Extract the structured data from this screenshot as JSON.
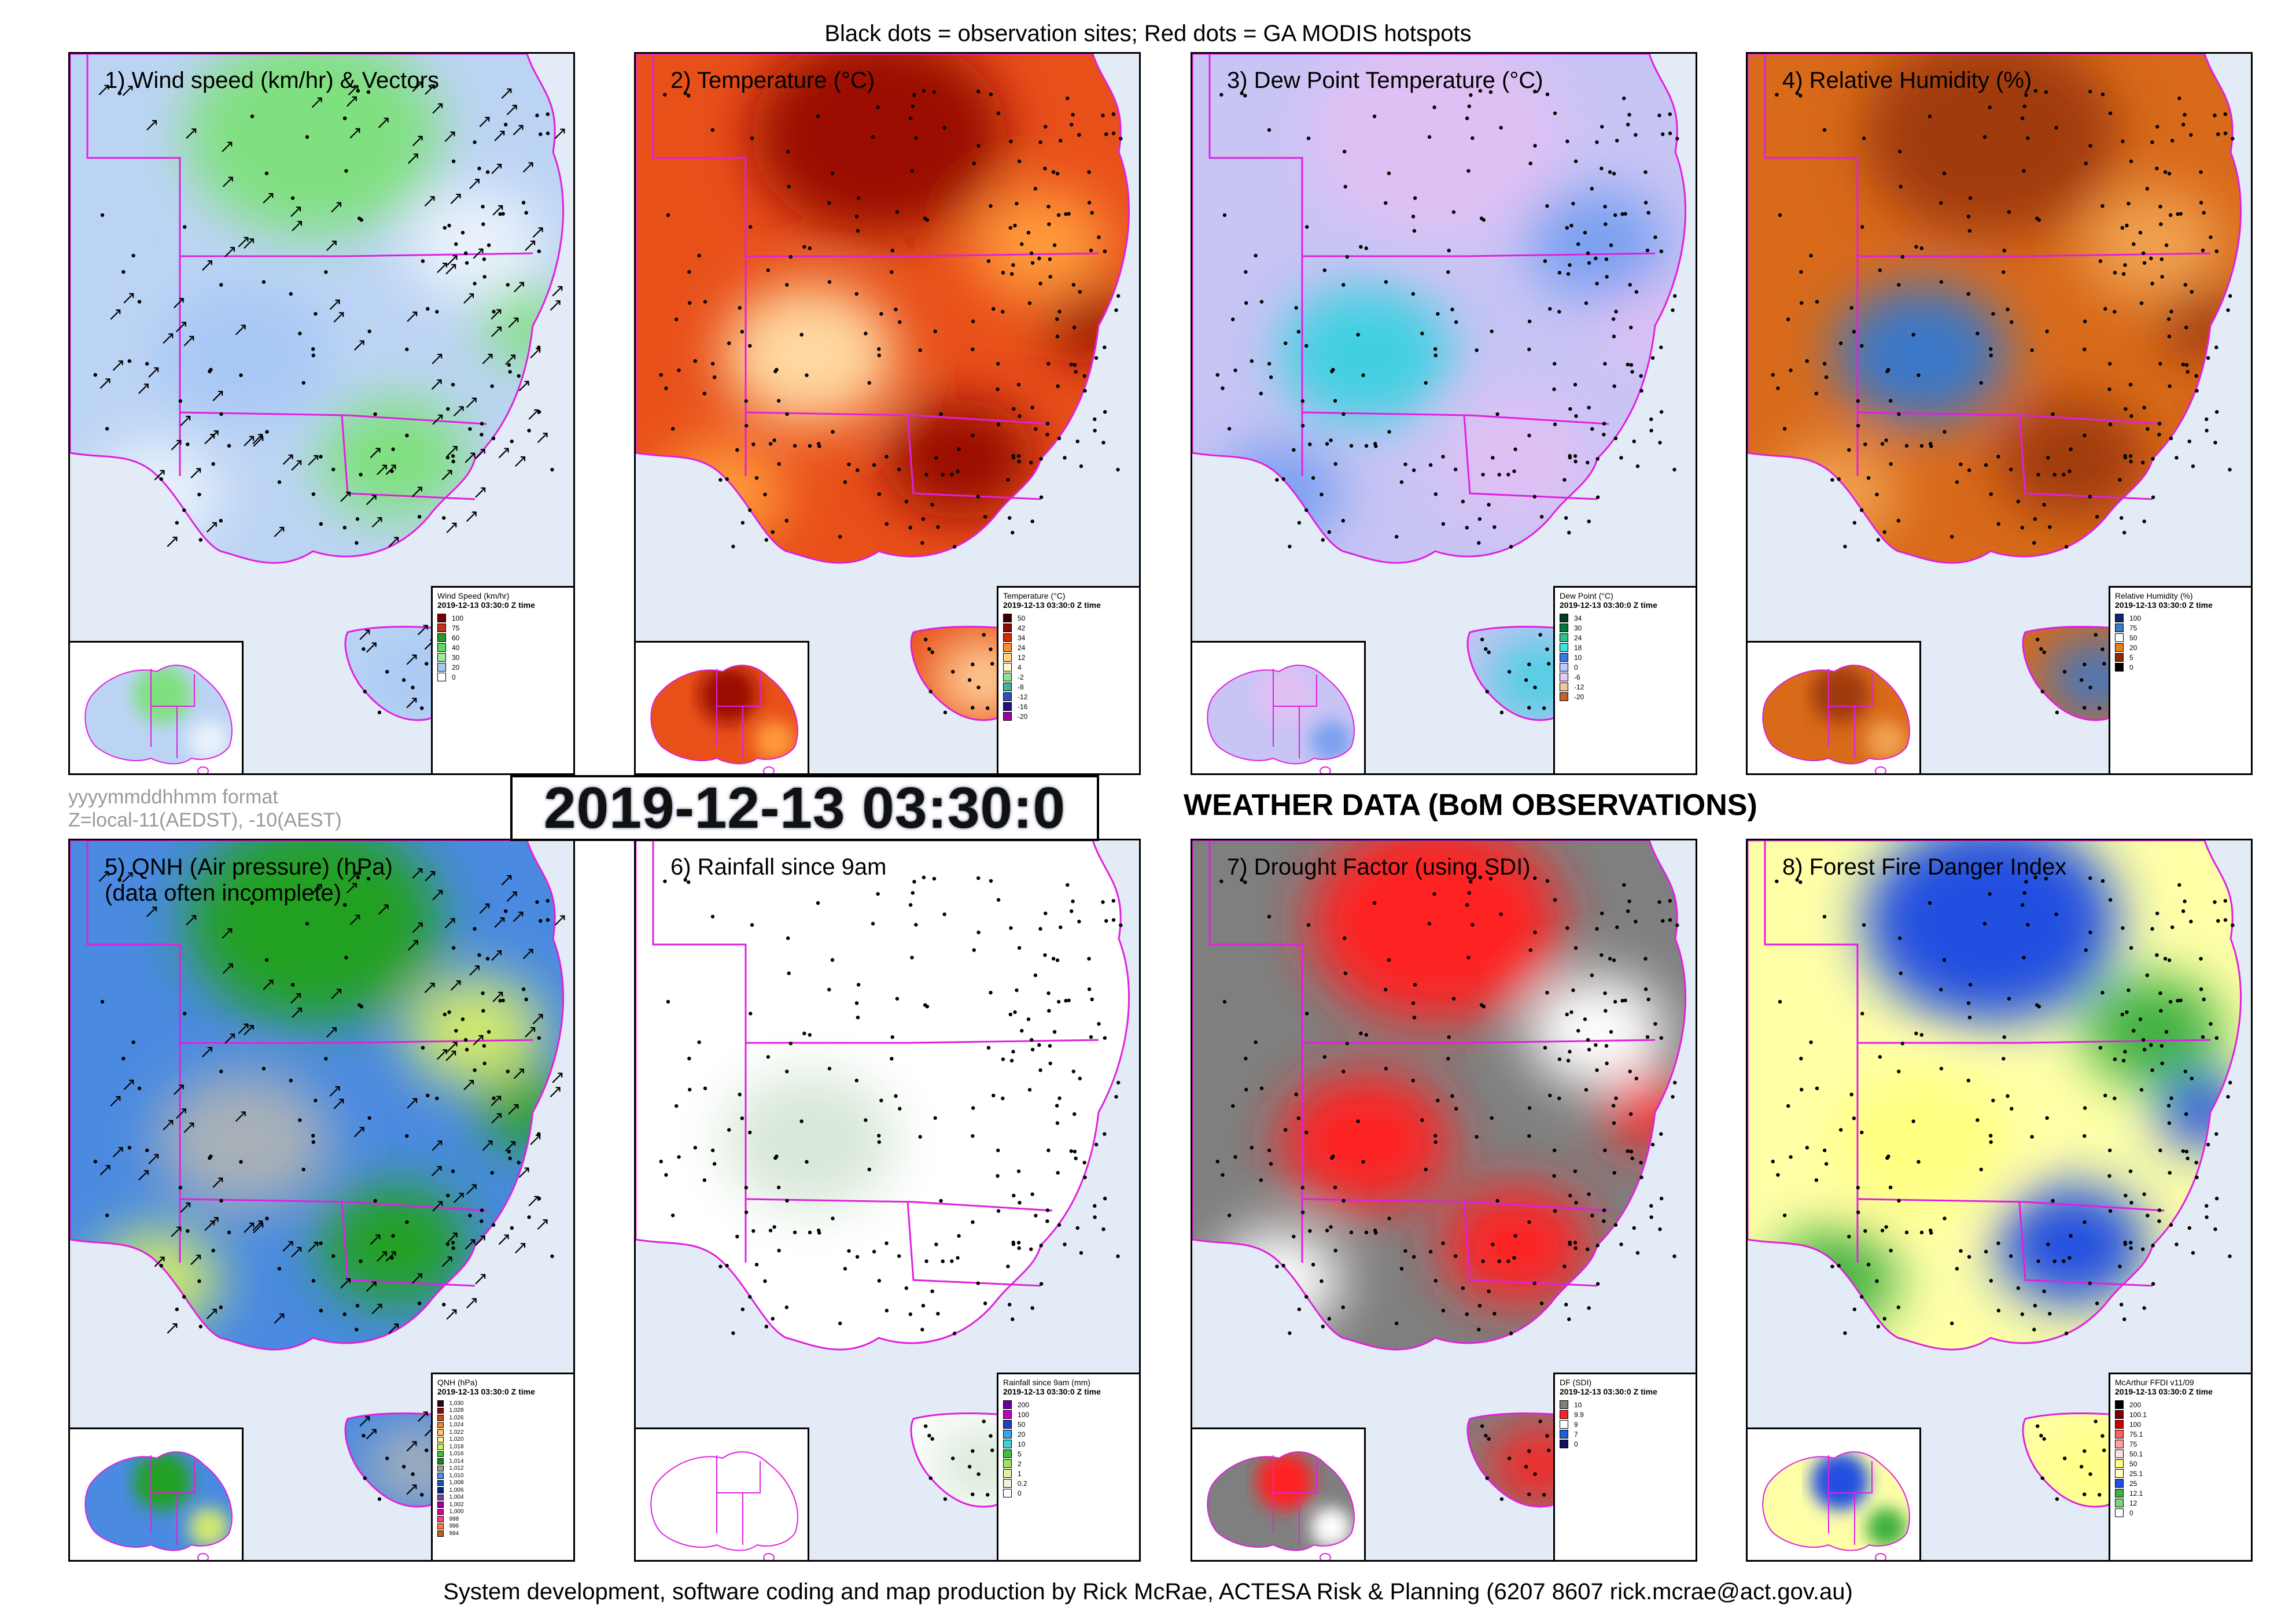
{
  "header": {
    "caption": "Black dots = observation sites; Red dots = GA MODIS hotspots"
  },
  "footer": {
    "caption": "System development, software coding and map production by Rick McRae, ACTESA Risk & Planning (6207 8607 rick.mcrae@act.gov.au)"
  },
  "timestamp": {
    "value": "2019-12-13 03:30:0",
    "format_note": "yyyymmddhhmm format",
    "zone_note": "Z=local-11(AEDST), -10(AEST)"
  },
  "main_title": "WEATHER DATA (BoM OBSERVATIONS)",
  "colors": {
    "border_magenta": "#e020e0",
    "ocean": "#e3ecf6",
    "site_dot": "#000000",
    "hotspot": "#ff2020"
  },
  "panels": [
    {
      "id": "wind",
      "title": "1) Wind speed (km/hr) & Vectors",
      "legend_title": "Wind Speed (km/hr)",
      "legend_date": "2019-12-13 03:30:0 Z time",
      "legend_items": [
        {
          "label": "100",
          "color": "#7a0000"
        },
        {
          "label": "75",
          "color": "#c0301a"
        },
        {
          "label": "60",
          "color": "#2a9a2a"
        },
        {
          "label": "40",
          "color": "#5fd65f"
        },
        {
          "label": "30",
          "color": "#9fe89f"
        },
        {
          "label": "20",
          "color": "#a8c8f4"
        },
        {
          "label": "0",
          "color": "#ffffff"
        }
      ],
      "base": "#bcd4f4",
      "blobs": [
        "#7fe07f",
        "#eaf2fc",
        "#a8c8f4"
      ],
      "arrows": true
    },
    {
      "id": "temp",
      "title": "2) Temperature (°C)",
      "legend_title": "Temperature (°C)",
      "legend_date": "2019-12-13 03:30:0 Z time",
      "legend_items": [
        {
          "label": "50",
          "color": "#3a0000"
        },
        {
          "label": "42",
          "color": "#8a0a00"
        },
        {
          "label": "34",
          "color": "#d42a00"
        },
        {
          "label": "24",
          "color": "#ff8c2a"
        },
        {
          "label": "12",
          "color": "#ffd27a"
        },
        {
          "label": "4",
          "color": "#fff6c8"
        },
        {
          "label": "-2",
          "color": "#8fe08f"
        },
        {
          "label": "-8",
          "color": "#40b0a0"
        },
        {
          "label": "-12",
          "color": "#3050c0"
        },
        {
          "label": "-16",
          "color": "#201080"
        },
        {
          "label": "-20",
          "color": "#a000a0"
        }
      ],
      "base": "#e8501a",
      "blobs": [
        "#9a1000",
        "#ff9a3a",
        "#ffd8a0"
      ],
      "arrows": false
    },
    {
      "id": "dew",
      "title": "3) Dew Point Temperature (°C)",
      "legend_title": "Dew Point (°C)",
      "legend_date": "2019-12-13 03:30:0 Z time",
      "legend_items": [
        {
          "label": "34",
          "color": "#004020"
        },
        {
          "label": "30",
          "color": "#007a40"
        },
        {
          "label": "24",
          "color": "#30c08a"
        },
        {
          "label": "18",
          "color": "#40e0e0"
        },
        {
          "label": "10",
          "color": "#3a7ae0"
        },
        {
          "label": "0",
          "color": "#b8c8ff"
        },
        {
          "label": "-6",
          "color": "#e8c8f4"
        },
        {
          "label": "-12",
          "color": "#f0c8a0"
        },
        {
          "label": "-20",
          "color": "#c86030"
        }
      ],
      "base": "#c8c4f4",
      "blobs": [
        "#e0c0f4",
        "#7aa0f0",
        "#40d0e0"
      ],
      "arrows": false
    },
    {
      "id": "rh",
      "title": "4) Relative Humidity (%)",
      "legend_title": "Relative Humidity (%)",
      "legend_date": "2019-12-13 03:30:0 Z time",
      "legend_items": [
        {
          "label": "100",
          "color": "#0a2a6a"
        },
        {
          "label": "75",
          "color": "#3a78c8"
        },
        {
          "label": "50",
          "color": "#ffffff"
        },
        {
          "label": "20",
          "color": "#e8801a"
        },
        {
          "label": "5",
          "color": "#8a2a00"
        },
        {
          "label": "0",
          "color": "#000000"
        }
      ],
      "base": "#d86a1a",
      "blobs": [
        "#a03a08",
        "#f0a050",
        "#3a78c8"
      ],
      "arrows": false
    },
    {
      "id": "qnh",
      "title": "5) QNH (Air pressure) (hPa)\n(data often incomplete)",
      "legend_title": "QNH (hPa)",
      "legend_date": "2019-12-13 03:30:0 Z time",
      "legend_items": [
        {
          "label": "1,030",
          "color": "#3a0000"
        },
        {
          "label": "1,028",
          "color": "#8a0a0a"
        },
        {
          "label": "1,026",
          "color": "#d04a10"
        },
        {
          "label": "1,024",
          "color": "#f08a30"
        },
        {
          "label": "1,022",
          "color": "#ffc860"
        },
        {
          "label": "1,020",
          "color": "#fff080"
        },
        {
          "label": "1,018",
          "color": "#c8f060"
        },
        {
          "label": "1,016",
          "color": "#40c040"
        },
        {
          "label": "1,014",
          "color": "#108a10"
        },
        {
          "label": "1,012",
          "color": "#a0a0a0"
        },
        {
          "label": "1,010",
          "color": "#4a90e8"
        },
        {
          "label": "1,008",
          "color": "#2050c0"
        },
        {
          "label": "1,006",
          "color": "#102080"
        },
        {
          "label": "1,004",
          "color": "#6a4aa0"
        },
        {
          "label": "1,002",
          "color": "#a000a0"
        },
        {
          "label": "1,000",
          "color": "#e000a0"
        },
        {
          "label": "998",
          "color": "#ff4080"
        },
        {
          "label": "996",
          "color": "#ff8040"
        },
        {
          "label": "994",
          "color": "#c06020"
        }
      ],
      "base": "#4a8ae0",
      "blobs": [
        "#20a020",
        "#d0e870",
        "#a8b0b8"
      ],
      "arrows": true
    },
    {
      "id": "rain",
      "title": "6) Rainfall since 9am",
      "legend_title": "Rainfall since 9am (mm)",
      "legend_date": "2019-12-13 03:30:0 Z time",
      "legend_items": [
        {
          "label": "200",
          "color": "#6a00a0"
        },
        {
          "label": "100",
          "color": "#c000c0"
        },
        {
          "label": "50",
          "color": "#2040c0"
        },
        {
          "label": "20",
          "color": "#40a0e0"
        },
        {
          "label": "10",
          "color": "#40d0d0"
        },
        {
          "label": "5",
          "color": "#40c040"
        },
        {
          "label": "2",
          "color": "#a0e060"
        },
        {
          "label": "1",
          "color": "#e0f0a0"
        },
        {
          "label": "0.2",
          "color": "#f0f0e0"
        },
        {
          "label": "0",
          "color": "#ffffff"
        }
      ],
      "base": "#ffffff",
      "blobs": [
        "#ffffff",
        "#ffffff",
        "#d8e8d8"
      ],
      "arrows": false
    },
    {
      "id": "df",
      "title": "7) Drought Factor (using SDI)",
      "legend_title": "DF (SDI)",
      "legend_date": "2019-12-13 03:30:0 Z time",
      "legend_items": [
        {
          "label": "10",
          "color": "#808080"
        },
        {
          "label": "9.9",
          "color": "#ff2020"
        },
        {
          "label": "9",
          "color": "#ffffff"
        },
        {
          "label": "7",
          "color": "#2060e0"
        },
        {
          "label": "0",
          "color": "#101060"
        }
      ],
      "base": "#7f7f7f",
      "blobs": [
        "#ff2020",
        "#ffffff",
        "#ff2020"
      ],
      "arrows": false
    },
    {
      "id": "ffdi",
      "title": "8) Forest Fire Danger Index",
      "legend_title": "McArthur FFDI v11/09",
      "legend_date": "2019-12-13 03:30:0 Z time",
      "legend_items": [
        {
          "label": "200",
          "color": "#000000"
        },
        {
          "label": "100.1",
          "color": "#7a0000"
        },
        {
          "label": "100",
          "color": "#d00000"
        },
        {
          "label": "75.1",
          "color": "#ff6060"
        },
        {
          "label": "75",
          "color": "#ffa0a0"
        },
        {
          "label": "50.1",
          "color": "#ffe0e0"
        },
        {
          "label": "50",
          "color": "#ffff80"
        },
        {
          "label": "25.1",
          "color": "#ffffc0"
        },
        {
          "label": "25",
          "color": "#2050e0"
        },
        {
          "label": "12.1",
          "color": "#40b040"
        },
        {
          "label": "12",
          "color": "#80d080"
        },
        {
          "label": "0",
          "color": "#ffffff"
        }
      ],
      "base": "#ffffa8",
      "blobs": [
        "#2050e0",
        "#40b040",
        "#ffff80"
      ],
      "arrows": false
    }
  ]
}
